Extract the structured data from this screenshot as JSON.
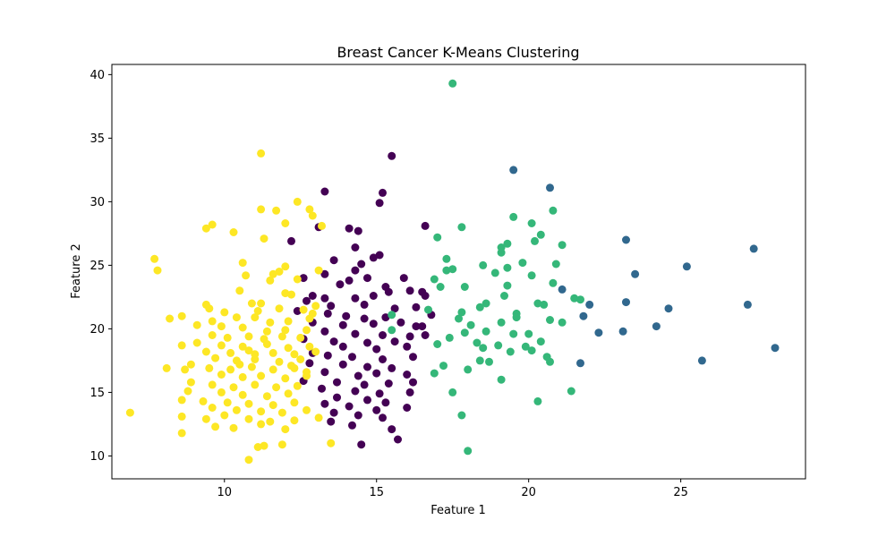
{
  "chart_data": {
    "type": "scatter",
    "title": "Breast Cancer K-Means Clustering",
    "xlabel": "Feature 1",
    "ylabel": "Feature 2",
    "xlim": [
      6.3,
      29.1
    ],
    "ylim": [
      8.2,
      40.8
    ],
    "xticks": [
      10,
      15,
      20,
      25
    ],
    "yticks": [
      10,
      15,
      20,
      25,
      30,
      35,
      40
    ],
    "grid": false,
    "legend": "none",
    "series": [
      {
        "color": "#440154",
        "points": [
          [
            13.3,
            30.8
          ],
          [
            15.5,
            33.6
          ],
          [
            15.2,
            30.7
          ],
          [
            15.1,
            29.9
          ],
          [
            16.6,
            28.1
          ],
          [
            13.1,
            28.0
          ],
          [
            14.1,
            27.9
          ],
          [
            14.4,
            27.7
          ],
          [
            12.2,
            26.9
          ],
          [
            14.3,
            26.4
          ],
          [
            14.9,
            25.6
          ],
          [
            15.1,
            25.8
          ],
          [
            13.6,
            25.4
          ],
          [
            14.5,
            25.1
          ],
          [
            14.3,
            24.6
          ],
          [
            13.3,
            24.3
          ],
          [
            12.6,
            24.0
          ],
          [
            14.7,
            24.0
          ],
          [
            15.9,
            24.0
          ],
          [
            14.1,
            23.8
          ],
          [
            13.8,
            23.5
          ],
          [
            15.3,
            23.3
          ],
          [
            16.1,
            23.0
          ],
          [
            16.5,
            22.9
          ],
          [
            12.9,
            22.6
          ],
          [
            13.3,
            22.4
          ],
          [
            14.3,
            22.4
          ],
          [
            14.9,
            22.6
          ],
          [
            15.4,
            22.9
          ],
          [
            12.7,
            22.2
          ],
          [
            13.5,
            21.8
          ],
          [
            14.6,
            21.9
          ],
          [
            15.6,
            21.6
          ],
          [
            16.3,
            21.7
          ],
          [
            12.4,
            21.4
          ],
          [
            13.4,
            21.2
          ],
          [
            14.0,
            21.0
          ],
          [
            14.6,
            20.8
          ],
          [
            15.3,
            20.9
          ],
          [
            16.8,
            21.1
          ],
          [
            12.9,
            20.5
          ],
          [
            13.9,
            20.3
          ],
          [
            14.9,
            20.4
          ],
          [
            15.8,
            20.5
          ],
          [
            16.5,
            20.2
          ],
          [
            13.3,
            19.8
          ],
          [
            14.3,
            19.6
          ],
          [
            15.2,
            19.5
          ],
          [
            16.1,
            19.4
          ],
          [
            16.6,
            19.5
          ],
          [
            12.6,
            19.2
          ],
          [
            13.6,
            19.0
          ],
          [
            14.7,
            18.9
          ],
          [
            15.6,
            19.0
          ],
          [
            13.9,
            18.6
          ],
          [
            15.0,
            18.4
          ],
          [
            16.0,
            18.6
          ],
          [
            12.9,
            18.1
          ],
          [
            13.4,
            17.9
          ],
          [
            14.2,
            17.8
          ],
          [
            15.2,
            17.6
          ],
          [
            16.2,
            17.8
          ],
          [
            12.8,
            17.3
          ],
          [
            13.9,
            17.2
          ],
          [
            14.7,
            17.0
          ],
          [
            15.5,
            16.9
          ],
          [
            13.3,
            16.6
          ],
          [
            14.4,
            16.3
          ],
          [
            15.0,
            16.5
          ],
          [
            16.0,
            16.4
          ],
          [
            12.6,
            15.9
          ],
          [
            13.7,
            15.8
          ],
          [
            14.6,
            15.6
          ],
          [
            15.4,
            15.7
          ],
          [
            16.2,
            15.8
          ],
          [
            13.2,
            15.3
          ],
          [
            14.3,
            15.1
          ],
          [
            15.1,
            14.9
          ],
          [
            16.1,
            15.0
          ],
          [
            13.7,
            14.6
          ],
          [
            14.7,
            14.4
          ],
          [
            15.3,
            14.2
          ],
          [
            13.3,
            14.1
          ],
          [
            14.1,
            13.9
          ],
          [
            15.0,
            13.6
          ],
          [
            16.0,
            13.8
          ],
          [
            13.6,
            13.4
          ],
          [
            14.4,
            13.2
          ],
          [
            15.2,
            13.0
          ],
          [
            13.5,
            12.7
          ],
          [
            14.2,
            12.4
          ],
          [
            15.5,
            12.1
          ],
          [
            15.7,
            11.3
          ],
          [
            14.5,
            10.9
          ],
          [
            16.6,
            22.6
          ],
          [
            16.3,
            20.2
          ]
        ]
      },
      {
        "color": "#31688e",
        "points": [
          [
            19.5,
            32.5
          ],
          [
            20.7,
            31.1
          ],
          [
            23.2,
            27.0
          ],
          [
            27.4,
            26.3
          ],
          [
            25.2,
            24.9
          ],
          [
            23.5,
            24.3
          ],
          [
            21.1,
            23.1
          ],
          [
            22.0,
            21.9
          ],
          [
            23.2,
            22.1
          ],
          [
            24.6,
            21.6
          ],
          [
            27.2,
            21.9
          ],
          [
            21.8,
            21.0
          ],
          [
            22.3,
            19.7
          ],
          [
            23.1,
            19.8
          ],
          [
            24.2,
            20.2
          ],
          [
            28.1,
            18.5
          ],
          [
            21.7,
            17.3
          ],
          [
            25.7,
            17.5
          ]
        ]
      },
      {
        "color": "#35b779",
        "points": [
          [
            17.5,
            39.3
          ],
          [
            19.5,
            28.8
          ],
          [
            20.8,
            29.3
          ],
          [
            17.8,
            28.0
          ],
          [
            20.1,
            28.3
          ],
          [
            20.4,
            27.4
          ],
          [
            17.0,
            27.2
          ],
          [
            20.2,
            26.9
          ],
          [
            19.1,
            26.4
          ],
          [
            19.3,
            26.7
          ],
          [
            21.1,
            26.6
          ],
          [
            19.1,
            26.0
          ],
          [
            17.3,
            25.5
          ],
          [
            18.5,
            25.0
          ],
          [
            19.8,
            25.2
          ],
          [
            20.9,
            25.1
          ],
          [
            17.3,
            24.6
          ],
          [
            17.5,
            24.7
          ],
          [
            18.9,
            24.4
          ],
          [
            19.3,
            24.8
          ],
          [
            20.1,
            24.2
          ],
          [
            16.9,
            23.9
          ],
          [
            17.1,
            23.3
          ],
          [
            17.9,
            23.3
          ],
          [
            19.3,
            23.4
          ],
          [
            20.8,
            23.6
          ],
          [
            21.7,
            22.3
          ],
          [
            18.6,
            22.0
          ],
          [
            19.2,
            22.6
          ],
          [
            20.3,
            22.0
          ],
          [
            16.7,
            21.5
          ],
          [
            17.8,
            21.3
          ],
          [
            18.4,
            21.7
          ],
          [
            19.6,
            21.2
          ],
          [
            20.5,
            21.9
          ],
          [
            21.5,
            22.4
          ],
          [
            17.7,
            20.8
          ],
          [
            18.1,
            20.3
          ],
          [
            19.1,
            20.5
          ],
          [
            19.6,
            20.9
          ],
          [
            20.7,
            20.7
          ],
          [
            21.1,
            20.5
          ],
          [
            17.9,
            19.7
          ],
          [
            18.6,
            19.8
          ],
          [
            19.5,
            19.6
          ],
          [
            20.0,
            19.6
          ],
          [
            17.4,
            19.3
          ],
          [
            18.3,
            18.9
          ],
          [
            19.0,
            18.7
          ],
          [
            19.9,
            18.6
          ],
          [
            20.4,
            19.0
          ],
          [
            17.0,
            18.8
          ],
          [
            18.5,
            18.5
          ],
          [
            19.4,
            18.2
          ],
          [
            20.1,
            18.3
          ],
          [
            18.4,
            17.5
          ],
          [
            18.7,
            17.4
          ],
          [
            20.6,
            17.8
          ],
          [
            20.7,
            17.4
          ],
          [
            17.2,
            17.1
          ],
          [
            18.0,
            16.8
          ],
          [
            16.9,
            16.5
          ],
          [
            19.1,
            16.0
          ],
          [
            21.4,
            15.1
          ],
          [
            17.5,
            15.0
          ],
          [
            20.3,
            14.3
          ],
          [
            17.8,
            13.2
          ],
          [
            18.0,
            10.4
          ],
          [
            15.5,
            21.1
          ],
          [
            15.5,
            19.9
          ]
        ]
      },
      {
        "color": "#fde725",
        "points": [
          [
            11.2,
            33.8
          ],
          [
            11.2,
            29.4
          ],
          [
            11.7,
            29.3
          ],
          [
            12.4,
            30.0
          ],
          [
            12.8,
            29.4
          ],
          [
            12.9,
            28.9
          ],
          [
            13.2,
            28.1
          ],
          [
            12.0,
            28.3
          ],
          [
            9.6,
            28.2
          ],
          [
            9.4,
            27.9
          ],
          [
            10.3,
            27.6
          ],
          [
            11.3,
            27.1
          ],
          [
            7.7,
            25.5
          ],
          [
            7.8,
            24.6
          ],
          [
            10.6,
            25.2
          ],
          [
            11.6,
            24.3
          ],
          [
            11.8,
            24.5
          ],
          [
            12.0,
            24.9
          ],
          [
            12.4,
            23.9
          ],
          [
            13.1,
            24.6
          ],
          [
            10.7,
            24.2
          ],
          [
            11.5,
            23.8
          ],
          [
            10.5,
            23.0
          ],
          [
            12.0,
            22.8
          ],
          [
            10.9,
            22.0
          ],
          [
            11.2,
            22.0
          ],
          [
            12.2,
            22.7
          ],
          [
            9.4,
            21.9
          ],
          [
            9.5,
            21.6
          ],
          [
            10.0,
            21.3
          ],
          [
            11.1,
            21.4
          ],
          [
            11.8,
            21.6
          ],
          [
            12.6,
            21.5
          ],
          [
            13.0,
            21.8
          ],
          [
            8.2,
            20.8
          ],
          [
            8.6,
            21.0
          ],
          [
            9.6,
            20.6
          ],
          [
            10.4,
            20.9
          ],
          [
            11.0,
            20.9
          ],
          [
            11.5,
            20.5
          ],
          [
            12.1,
            20.6
          ],
          [
            12.8,
            20.8
          ],
          [
            9.1,
            20.3
          ],
          [
            9.9,
            20.2
          ],
          [
            10.6,
            20.1
          ],
          [
            11.4,
            19.8
          ],
          [
            12.0,
            19.9
          ],
          [
            12.7,
            19.9
          ],
          [
            9.6,
            19.5
          ],
          [
            10.1,
            19.3
          ],
          [
            10.8,
            19.4
          ],
          [
            11.3,
            19.2
          ],
          [
            11.9,
            19.4
          ],
          [
            12.5,
            19.3
          ],
          [
            8.6,
            18.7
          ],
          [
            9.1,
            18.9
          ],
          [
            9.9,
            18.7
          ],
          [
            10.6,
            18.6
          ],
          [
            11.4,
            18.8
          ],
          [
            12.1,
            18.5
          ],
          [
            12.8,
            18.6
          ],
          [
            9.4,
            18.2
          ],
          [
            10.2,
            18.1
          ],
          [
            10.8,
            18.3
          ],
          [
            11.6,
            18.1
          ],
          [
            12.3,
            18.0
          ],
          [
            13.0,
            18.2
          ],
          [
            9.7,
            17.7
          ],
          [
            10.4,
            17.5
          ],
          [
            11.0,
            17.6
          ],
          [
            11.8,
            17.4
          ],
          [
            12.5,
            17.6
          ],
          [
            8.9,
            17.2
          ],
          [
            9.5,
            16.9
          ],
          [
            10.2,
            16.8
          ],
          [
            10.9,
            17.0
          ],
          [
            11.6,
            16.8
          ],
          [
            12.3,
            16.9
          ],
          [
            8.1,
            16.9
          ],
          [
            8.7,
            16.8
          ],
          [
            9.9,
            16.4
          ],
          [
            10.6,
            16.2
          ],
          [
            11.2,
            16.3
          ],
          [
            12.0,
            16.1
          ],
          [
            12.7,
            16.3
          ],
          [
            8.9,
            15.8
          ],
          [
            9.6,
            15.6
          ],
          [
            10.3,
            15.4
          ],
          [
            11.0,
            15.6
          ],
          [
            11.7,
            15.4
          ],
          [
            12.4,
            15.5
          ],
          [
            8.8,
            15.1
          ],
          [
            9.9,
            15.0
          ],
          [
            10.6,
            14.8
          ],
          [
            11.4,
            14.7
          ],
          [
            12.1,
            14.9
          ],
          [
            8.6,
            14.4
          ],
          [
            9.3,
            14.3
          ],
          [
            10.1,
            14.2
          ],
          [
            10.8,
            14.1
          ],
          [
            11.6,
            14.0
          ],
          [
            12.3,
            14.2
          ],
          [
            6.9,
            13.4
          ],
          [
            9.6,
            13.8
          ],
          [
            10.4,
            13.6
          ],
          [
            11.2,
            13.5
          ],
          [
            11.9,
            13.4
          ],
          [
            12.7,
            13.6
          ],
          [
            8.6,
            13.1
          ],
          [
            9.4,
            12.9
          ],
          [
            10.0,
            13.2
          ],
          [
            10.8,
            12.9
          ],
          [
            11.5,
            12.7
          ],
          [
            12.3,
            12.8
          ],
          [
            13.1,
            13.0
          ],
          [
            9.7,
            12.3
          ],
          [
            10.3,
            12.2
          ],
          [
            11.2,
            12.5
          ],
          [
            12.0,
            12.1
          ],
          [
            8.6,
            11.8
          ],
          [
            11.3,
            10.8
          ],
          [
            11.9,
            10.9
          ],
          [
            13.5,
            11.0
          ],
          [
            11.1,
            10.7
          ],
          [
            10.8,
            9.7
          ],
          [
            12.2,
            17.1
          ],
          [
            12.7,
            16.6
          ],
          [
            11.0,
            18.0
          ],
          [
            10.5,
            17.2
          ],
          [
            12.9,
            21.2
          ]
        ]
      }
    ]
  }
}
